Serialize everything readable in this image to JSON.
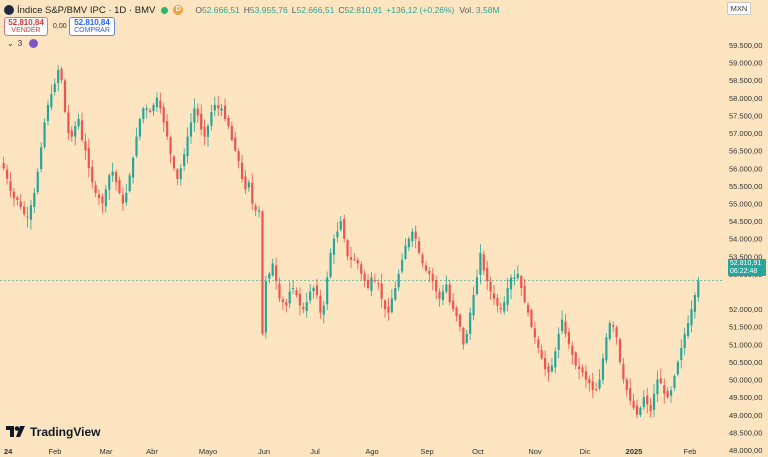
{
  "header": {
    "title": "Índice S&P/BMV IPC · 1D · BMV",
    "flag_letter": "D",
    "open_label": "O",
    "open": "52.666,51",
    "high_label": "H",
    "high": "53.955,76",
    "low_label": "L",
    "low": "52.666,51",
    "close_label": "C",
    "close": "52.810,91",
    "change": "+136,12 (+0,26%)",
    "vol_label": "Vol.",
    "vol": "3,58M"
  },
  "trade": {
    "sell_price": "52.810,84",
    "sell_label": "VENDER",
    "spread": "0,00",
    "buy_price": "52.810,84",
    "buy_label": "COMPRAR"
  },
  "indicators": {
    "count_label": "3"
  },
  "currency": "MXN",
  "price_tag": {
    "price": "52.810,91",
    "countdown": "06:22:48"
  },
  "brand": "TradingView",
  "colors": {
    "up": "#26a69a",
    "down": "#ef5350",
    "background": "#fce5c0",
    "tag": "#26a69a"
  },
  "chart_data": {
    "type": "candlestick",
    "y_ticks": [
      {
        "v": 59500,
        "label": "59.500,00"
      },
      {
        "v": 59000,
        "label": "59.000,00"
      },
      {
        "v": 58500,
        "label": "58.500,00"
      },
      {
        "v": 58000,
        "label": "58.000,00"
      },
      {
        "v": 57500,
        "label": "57.500,00"
      },
      {
        "v": 57000,
        "label": "57.000,00"
      },
      {
        "v": 56500,
        "label": "56.500,00"
      },
      {
        "v": 56000,
        "label": "56.000,00"
      },
      {
        "v": 55500,
        "label": "55.500,00"
      },
      {
        "v": 55000,
        "label": "55.000,00"
      },
      {
        "v": 54500,
        "label": "54.500,00"
      },
      {
        "v": 54000,
        "label": "54.000,00"
      },
      {
        "v": 53500,
        "label": "53.500,00"
      },
      {
        "v": 53000,
        "label": "53.000,00"
      },
      {
        "v": 52000,
        "label": "52.000,00"
      },
      {
        "v": 51500,
        "label": "51.500,00"
      },
      {
        "v": 51000,
        "label": "51.000,00"
      },
      {
        "v": 50500,
        "label": "50.500,00"
      },
      {
        "v": 50000,
        "label": "50.000,00"
      },
      {
        "v": 49500,
        "label": "49.500,00"
      },
      {
        "v": 49000,
        "label": "49.000,00"
      },
      {
        "v": 48500,
        "label": "48.500,00"
      },
      {
        "v": 48000,
        "label": "48.000,00"
      }
    ],
    "x_labels": [
      {
        "label": "24",
        "bold": true
      },
      {
        "label": "Feb",
        "bold": false
      },
      {
        "label": "Mar",
        "bold": false
      },
      {
        "label": "Abr",
        "bold": false
      },
      {
        "label": "Mayo",
        "bold": false
      },
      {
        "label": "Jun",
        "bold": false
      },
      {
        "label": "Jul",
        "bold": false
      },
      {
        "label": "Ago",
        "bold": false
      },
      {
        "label": "Sep",
        "bold": false
      },
      {
        "label": "Oct",
        "bold": false
      },
      {
        "label": "Nov",
        "bold": false
      },
      {
        "label": "Dic",
        "bold": false
      },
      {
        "label": "2025",
        "bold": true
      },
      {
        "label": "Feb",
        "bold": false
      }
    ],
    "last_price": 52810.91,
    "closes": [
      56000,
      55700,
      55350,
      55150,
      55100,
      54900,
      54700,
      54600,
      54950,
      55300,
      55900,
      56600,
      57300,
      57800,
      58100,
      58400,
      58800,
      58500,
      57600,
      57000,
      56900,
      57200,
      57400,
      56800,
      56500,
      56000,
      55600,
      55300,
      55150,
      55000,
      55400,
      55800,
      55900,
      55600,
      55300,
      55000,
      55300,
      55800,
      56300,
      56900,
      57400,
      57700,
      57700,
      57600,
      57800,
      58000,
      57700,
      57300,
      56900,
      56400,
      56000,
      55700,
      56000,
      56400,
      56900,
      57300,
      57700,
      57500,
      57100,
      56900,
      57200,
      57600,
      57800,
      57700,
      57700,
      57400,
      57200,
      56800,
      56500,
      56200,
      55700,
      55400,
      55600,
      55000,
      54800,
      54800,
      51300,
      52800,
      53000,
      53300,
      52800,
      52300,
      52200,
      52100,
      52500,
      52600,
      52400,
      52100,
      52000,
      52200,
      52500,
      52600,
      52400,
      51900,
      52100,
      52900,
      53600,
      54000,
      54200,
      54500,
      54000,
      53500,
      53400,
      53400,
      53300,
      53000,
      52800,
      52600,
      52900,
      52800,
      52700,
      52300,
      52000,
      51900,
      52300,
      52600,
      53000,
      53400,
      53800,
      54000,
      54200,
      54000,
      53600,
      53300,
      53100,
      53000,
      52800,
      52500,
      52300,
      52500,
      52700,
      52200,
      52000,
      51800,
      51500,
      51000,
      51300,
      51900,
      52400,
      52900,
      53600,
      53100,
      52800,
      52500,
      52300,
      52100,
      52000,
      52200,
      52600,
      52900,
      52900,
      53000,
      52600,
      52200,
      51900,
      51500,
      51200,
      50900,
      50600,
      50300,
      50200,
      50400,
      50800,
      51300,
      51700,
      51300,
      51000,
      50700,
      50400,
      50300,
      50200,
      50000,
      49900,
      49700,
      49700,
      50000,
      50600,
      51200,
      51600,
      51500,
      51200,
      50500,
      50000,
      49700,
      49400,
      49200,
      49000,
      49200,
      49500,
      49300,
      49100,
      49600,
      50000,
      49900,
      49600,
      49500,
      49700,
      50100,
      50500,
      50900,
      51300,
      51600,
      52000,
      52400,
      52810
    ]
  }
}
